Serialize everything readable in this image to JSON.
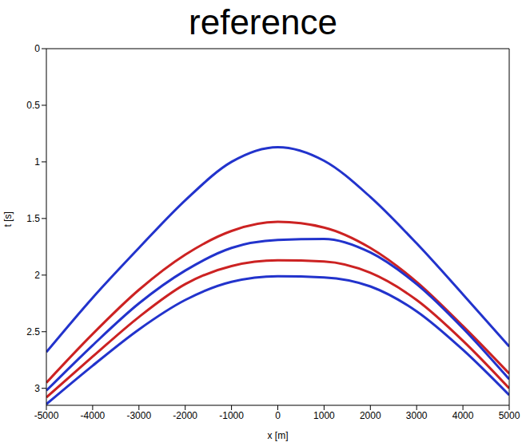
{
  "chart_data": {
    "type": "line",
    "title": "reference",
    "x_label": "x [m]",
    "y_label": "t [s]",
    "x": [
      -5000,
      -4000,
      -3000,
      -2000,
      -1000,
      0,
      1000,
      2000,
      3000,
      4000,
      5000
    ],
    "series": [
      {
        "color": "#2233cc",
        "values": [
          2.68,
          2.2,
          1.76,
          1.34,
          1.0,
          0.87,
          0.99,
          1.31,
          1.72,
          2.17,
          2.63
        ]
      },
      {
        "color": "#cc2222",
        "values": [
          2.95,
          2.52,
          2.13,
          1.82,
          1.61,
          1.53,
          1.58,
          1.76,
          2.06,
          2.45,
          2.87
        ]
      },
      {
        "color": "#2233cc",
        "values": [
          3.02,
          2.62,
          2.25,
          1.96,
          1.76,
          1.69,
          1.68,
          1.8,
          2.08,
          2.47,
          2.92
        ]
      },
      {
        "color": "#cc2222",
        "values": [
          3.08,
          2.72,
          2.37,
          2.08,
          1.92,
          1.87,
          1.88,
          1.98,
          2.22,
          2.58,
          3.0
        ]
      },
      {
        "color": "#2233cc",
        "values": [
          3.14,
          2.8,
          2.48,
          2.22,
          2.06,
          2.01,
          2.02,
          2.1,
          2.32,
          2.66,
          3.06
        ]
      }
    ],
    "xlim": [
      -5000,
      5000
    ],
    "xticks": [
      -5000,
      -4000,
      -3000,
      -2000,
      -1000,
      0,
      1000,
      2000,
      3000,
      4000,
      5000
    ],
    "ylim": [
      0,
      3.15
    ],
    "yticks": [
      0,
      0.5,
      1,
      1.5,
      2,
      2.5,
      3
    ],
    "grid": false
  }
}
